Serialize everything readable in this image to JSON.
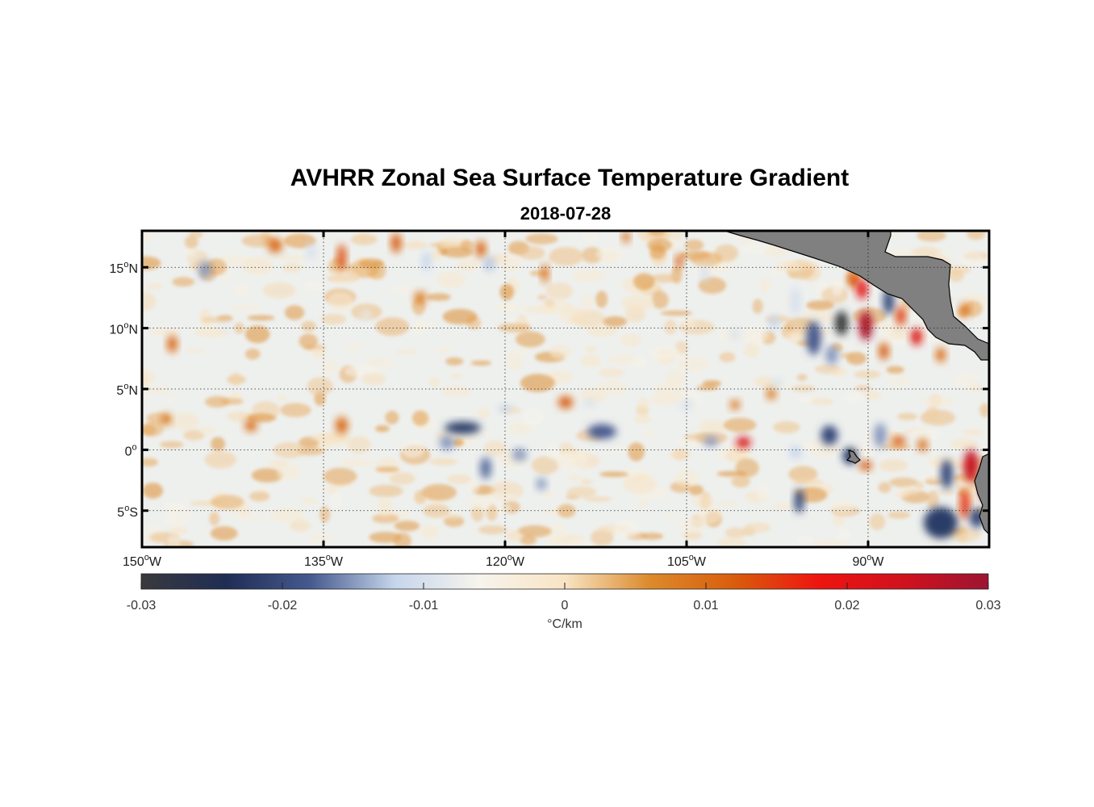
{
  "title": "AVHRR Zonal Sea Surface Temperature Gradient",
  "subtitle": "2018-07-28",
  "map": {
    "lon_range": [
      -150,
      -80
    ],
    "lat_range": [
      -8,
      18
    ],
    "lon_ticks": [
      {
        "value": -150,
        "deg": "150",
        "hemi": "W"
      },
      {
        "value": -135,
        "deg": "135",
        "hemi": "W"
      },
      {
        "value": -120,
        "deg": "120",
        "hemi": "W"
      },
      {
        "value": -105,
        "deg": "105",
        "hemi": "W"
      },
      {
        "value": -90,
        "deg": "90",
        "hemi": "W"
      }
    ],
    "lat_ticks": [
      {
        "value": 15,
        "deg": "15",
        "hemi": "N"
      },
      {
        "value": 10,
        "deg": "10",
        "hemi": "N"
      },
      {
        "value": 5,
        "deg": "5",
        "hemi": "N"
      },
      {
        "value": 0,
        "deg": "0",
        "hemi": ""
      },
      {
        "value": -5,
        "deg": "5",
        "hemi": "S"
      }
    ],
    "gridlines": true,
    "land_color": "#808080"
  },
  "colorbar": {
    "range": [
      -0.03,
      0.03
    ],
    "ticks": [
      "-0.03",
      "-0.02",
      "-0.01",
      "0",
      "0.01",
      "0.02",
      "0.03"
    ],
    "units": "°C/km",
    "colors": [
      "#3a3a3d",
      "#1f2d55",
      "#465a8f",
      "#c6d6ec",
      "#f7f4ec",
      "#f8e4c4",
      "#dc8a2c",
      "#d95d0c",
      "#ee1410",
      "#d0121e",
      "#9c1432"
    ]
  },
  "features": [
    {
      "lon": -92.2,
      "lat": 10.4,
      "value": -0.03,
      "rx": 0.55,
      "ry": 1.0
    },
    {
      "lon": -90.2,
      "lat": 10.2,
      "value": 0.028,
      "rx": 0.55,
      "ry": 1.2
    },
    {
      "lon": -91.2,
      "lat": 14.0,
      "value": 0.012,
      "rx": 0.45,
      "ry": 0.7
    },
    {
      "lon": -90.5,
      "lat": 13.2,
      "value": 0.02,
      "rx": 0.45,
      "ry": 0.8
    },
    {
      "lon": -88.3,
      "lat": 12.2,
      "value": -0.02,
      "rx": 0.45,
      "ry": 1.1
    },
    {
      "lon": -87.3,
      "lat": 11.0,
      "value": 0.014,
      "rx": 0.4,
      "ry": 0.8
    },
    {
      "lon": -86.0,
      "lat": 9.3,
      "value": 0.022,
      "rx": 0.45,
      "ry": 0.7
    },
    {
      "lon": -88.7,
      "lat": 8.1,
      "value": 0.012,
      "rx": 0.4,
      "ry": 0.7
    },
    {
      "lon": -94.5,
      "lat": 9.2,
      "value": -0.018,
      "rx": 0.6,
      "ry": 1.4
    },
    {
      "lon": -93.0,
      "lat": 7.8,
      "value": -0.015,
      "rx": 0.5,
      "ry": 0.8
    },
    {
      "lon": -96.0,
      "lat": 12.2,
      "value": -0.01,
      "rx": 0.4,
      "ry": 1.2
    },
    {
      "lon": -84.0,
      "lat": 7.8,
      "value": 0.01,
      "rx": 0.4,
      "ry": 0.6
    },
    {
      "lon": -82.0,
      "lat": 11.5,
      "value": 0.009,
      "rx": 0.4,
      "ry": 0.6
    },
    {
      "lon": -100.3,
      "lat": 0.6,
      "value": 0.022,
      "rx": 0.6,
      "ry": 0.45
    },
    {
      "lon": -103.0,
      "lat": 0.7,
      "value": -0.015,
      "rx": 0.6,
      "ry": 0.4
    },
    {
      "lon": -96.0,
      "lat": -0.2,
      "value": -0.012,
      "rx": 0.5,
      "ry": 0.5
    },
    {
      "lon": -93.2,
      "lat": 1.2,
      "value": -0.02,
      "rx": 0.7,
      "ry": 0.8
    },
    {
      "lon": -91.5,
      "lat": -0.5,
      "value": -0.022,
      "rx": 0.6,
      "ry": 0.7
    },
    {
      "lon": -90.2,
      "lat": -1.3,
      "value": 0.012,
      "rx": 0.5,
      "ry": 0.4
    },
    {
      "lon": -89.0,
      "lat": 1.2,
      "value": -0.015,
      "rx": 0.5,
      "ry": 1.0
    },
    {
      "lon": -87.5,
      "lat": 0.7,
      "value": 0.012,
      "rx": 0.6,
      "ry": 0.4
    },
    {
      "lon": -85.5,
      "lat": 0.4,
      "value": 0.01,
      "rx": 0.4,
      "ry": 0.5
    },
    {
      "lon": -81.5,
      "lat": -1.3,
      "value": 0.025,
      "rx": 0.6,
      "ry": 1.3
    },
    {
      "lon": -80.2,
      "lat": -3.3,
      "value": 0.032,
      "rx": 0.5,
      "ry": 0.9
    },
    {
      "lon": -83.5,
      "lat": -2.0,
      "value": -0.02,
      "rx": 0.5,
      "ry": 1.2
    },
    {
      "lon": -84.0,
      "lat": -6.0,
      "value": -0.022,
      "rx": 1.4,
      "ry": 1.3
    },
    {
      "lon": -82.0,
      "lat": -4.5,
      "value": 0.015,
      "rx": 0.4,
      "ry": 1.2
    },
    {
      "lon": -81.0,
      "lat": -5.6,
      "value": -0.02,
      "rx": 0.6,
      "ry": 0.8
    },
    {
      "lon": -95.7,
      "lat": -4.2,
      "value": -0.02,
      "rx": 0.4,
      "ry": 1.0
    },
    {
      "lon": -123.5,
      "lat": 1.8,
      "value": -0.022,
      "rx": 1.5,
      "ry": 0.5
    },
    {
      "lon": -124.8,
      "lat": 0.6,
      "value": -0.015,
      "rx": 0.6,
      "ry": 0.6
    },
    {
      "lon": -112.0,
      "lat": 1.5,
      "value": -0.018,
      "rx": 1.2,
      "ry": 0.6
    },
    {
      "lon": -118.8,
      "lat": -0.4,
      "value": -0.015,
      "rx": 0.6,
      "ry": 0.5
    },
    {
      "lon": -121.6,
      "lat": -1.5,
      "value": -0.017,
      "rx": 0.45,
      "ry": 0.9
    },
    {
      "lon": -117.0,
      "lat": -2.8,
      "value": -0.015,
      "rx": 0.4,
      "ry": 0.5
    },
    {
      "lon": -115.0,
      "lat": 3.9,
      "value": 0.012,
      "rx": 0.6,
      "ry": 0.5
    },
    {
      "lon": -120.0,
      "lat": 3.4,
      "value": -0.012,
      "rx": 0.6,
      "ry": 0.3
    },
    {
      "lon": -113.0,
      "lat": 3.8,
      "value": -0.01,
      "rx": 0.5,
      "ry": 0.3
    },
    {
      "lon": -105.0,
      "lat": 3.7,
      "value": -0.01,
      "rx": 0.5,
      "ry": 0.4
    },
    {
      "lon": -101.0,
      "lat": 3.7,
      "value": 0.009,
      "rx": 0.4,
      "ry": 0.4
    },
    {
      "lon": -98.0,
      "lat": 4.6,
      "value": 0.008,
      "rx": 0.4,
      "ry": 0.5
    },
    {
      "lon": -133.5,
      "lat": 15.8,
      "value": 0.013,
      "rx": 0.35,
      "ry": 1.1
    },
    {
      "lon": -129.0,
      "lat": 17.0,
      "value": 0.012,
      "rx": 0.4,
      "ry": 0.8
    },
    {
      "lon": -126.5,
      "lat": 15.5,
      "value": -0.012,
      "rx": 0.35,
      "ry": 0.8
    },
    {
      "lon": -144.8,
      "lat": 14.8,
      "value": -0.015,
      "rx": 0.5,
      "ry": 0.7
    },
    {
      "lon": -147.5,
      "lat": 8.7,
      "value": 0.011,
      "rx": 0.4,
      "ry": 0.7
    },
    {
      "lon": -139.0,
      "lat": 16.8,
      "value": 0.01,
      "rx": 0.6,
      "ry": 0.6
    },
    {
      "lon": -136.0,
      "lat": 16.3,
      "value": -0.01,
      "rx": 0.35,
      "ry": 0.7
    },
    {
      "lon": -141.0,
      "lat": 2.0,
      "value": 0.01,
      "rx": 0.5,
      "ry": 0.5
    },
    {
      "lon": -133.5,
      "lat": 2.0,
      "value": 0.01,
      "rx": 0.5,
      "ry": 0.7
    },
    {
      "lon": -148.0,
      "lat": 2.5,
      "value": 0.008,
      "rx": 0.4,
      "ry": 0.5
    },
    {
      "lon": -105.6,
      "lat": 15.5,
      "value": 0.012,
      "rx": 0.3,
      "ry": 0.6
    },
    {
      "lon": -116.7,
      "lat": 14.5,
      "value": 0.009,
      "rx": 0.3,
      "ry": 0.8
    },
    {
      "lon": -122.0,
      "lat": 16.5,
      "value": 0.011,
      "rx": 0.4,
      "ry": 0.7
    },
    {
      "lon": -121.3,
      "lat": 15.3,
      "value": -0.013,
      "rx": 0.4,
      "ry": 0.6
    },
    {
      "lon": -103.5,
      "lat": 14.5,
      "value": -0.01,
      "rx": 0.3,
      "ry": 0.7
    },
    {
      "lon": -110.0,
      "lat": 17.5,
      "value": 0.01,
      "rx": 0.3,
      "ry": 0.5
    },
    {
      "lon": -101.0,
      "lat": 9.5,
      "value": -0.009,
      "rx": 0.5,
      "ry": 0.5
    },
    {
      "lon": -97.8,
      "lat": 10.5,
      "value": -0.012,
      "rx": 0.4,
      "ry": 0.6
    },
    {
      "lon": -97.5,
      "lat": 5.5,
      "value": -0.01,
      "rx": 0.4,
      "ry": 0.4
    },
    {
      "lon": -143.0,
      "lat": 10.0,
      "value": -0.008,
      "rx": 0.4,
      "ry": 0.5
    },
    {
      "lon": -127.0,
      "lat": 12.5,
      "value": 0.008,
      "rx": 0.5,
      "ry": 0.5
    },
    {
      "lon": -131.5,
      "lat": 11.0,
      "value": -0.008,
      "rx": 0.4,
      "ry": 0.5
    }
  ]
}
